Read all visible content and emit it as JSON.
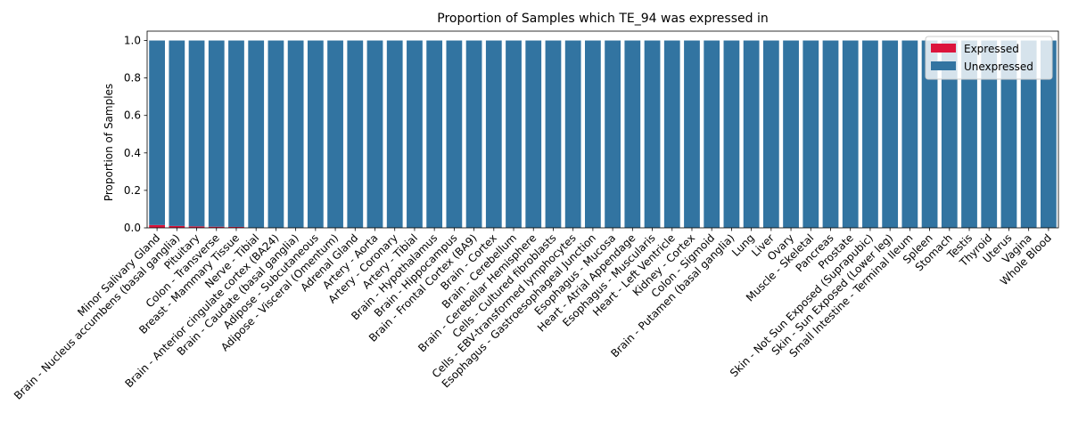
{
  "chart_data": {
    "type": "bar",
    "stacked": true,
    "title": "Proportion of Samples which TE_94 was expressed in",
    "xlabel": "",
    "ylabel": "Proportion of Samples",
    "ylim": [
      0,
      1.05
    ],
    "yticks": [
      "0.0",
      "0.2",
      "0.4",
      "0.6",
      "0.8",
      "1.0"
    ],
    "ytick_values": [
      0,
      0.2,
      0.4,
      0.6,
      0.8,
      1.0
    ],
    "grid": false,
    "legend_position": "top-right",
    "categories": [
      "Minor Salivary Gland",
      "Brain - Nucleus accumbens (basal ganglia)",
      "Pituitary",
      "Colon - Transverse",
      "Breast - Mammary Tissue",
      "Nerve - Tibial",
      "Brain - Anterior cingulate cortex (BA24)",
      "Brain - Caudate (basal ganglia)",
      "Adipose - Subcutaneous",
      "Adipose - Visceral (Omentum)",
      "Adrenal Gland",
      "Artery - Aorta",
      "Artery - Coronary",
      "Artery - Tibial",
      "Brain - Hypothalamus",
      "Brain - Hippocampus",
      "Brain - Frontal Cortex (BA9)",
      "Brain - Cortex",
      "Brain - Cerebellum",
      "Brain - Cerebellar Hemisphere",
      "Cells - Cultured fibroblasts",
      "Cells - EBV-transformed lymphocytes",
      "Esophagus - Gastroesophageal Junction",
      "Esophagus - Mucosa",
      "Heart - Atrial Appendage",
      "Esophagus - Muscularis",
      "Heart - Left Ventricle",
      "Kidney - Cortex",
      "Colon - Sigmoid",
      "Brain - Putamen (basal ganglia)",
      "Lung",
      "Liver",
      "Ovary",
      "Muscle - Skeletal",
      "Pancreas",
      "Prostate",
      "Skin - Not Sun Exposed (Suprapubic)",
      "Skin - Sun Exposed (Lower leg)",
      "Small Intestine - Terminal Ileum",
      "Spleen",
      "Stomach",
      "Testis",
      "Thyroid",
      "Uterus",
      "Vagina",
      "Whole Blood"
    ],
    "series": [
      {
        "name": "Expressed",
        "color": "#dc143c",
        "values": [
          0.015,
          0.01,
          0.008,
          0.006,
          0.005,
          0,
          0,
          0,
          0,
          0,
          0,
          0,
          0,
          0,
          0,
          0,
          0,
          0,
          0,
          0,
          0,
          0,
          0,
          0,
          0,
          0,
          0,
          0,
          0,
          0,
          0,
          0,
          0,
          0,
          0,
          0,
          0,
          0,
          0,
          0,
          0,
          0,
          0,
          0,
          0,
          0
        ]
      },
      {
        "name": "Unexpressed",
        "color": "#3274a1",
        "values": [
          0.985,
          0.99,
          0.992,
          0.994,
          0.995,
          1,
          1,
          1,
          1,
          1,
          1,
          1,
          1,
          1,
          1,
          1,
          1,
          1,
          1,
          1,
          1,
          1,
          1,
          1,
          1,
          1,
          1,
          1,
          1,
          1,
          1,
          1,
          1,
          1,
          1,
          1,
          1,
          1,
          1,
          1,
          1,
          1,
          1,
          1,
          1,
          1
        ]
      }
    ]
  }
}
